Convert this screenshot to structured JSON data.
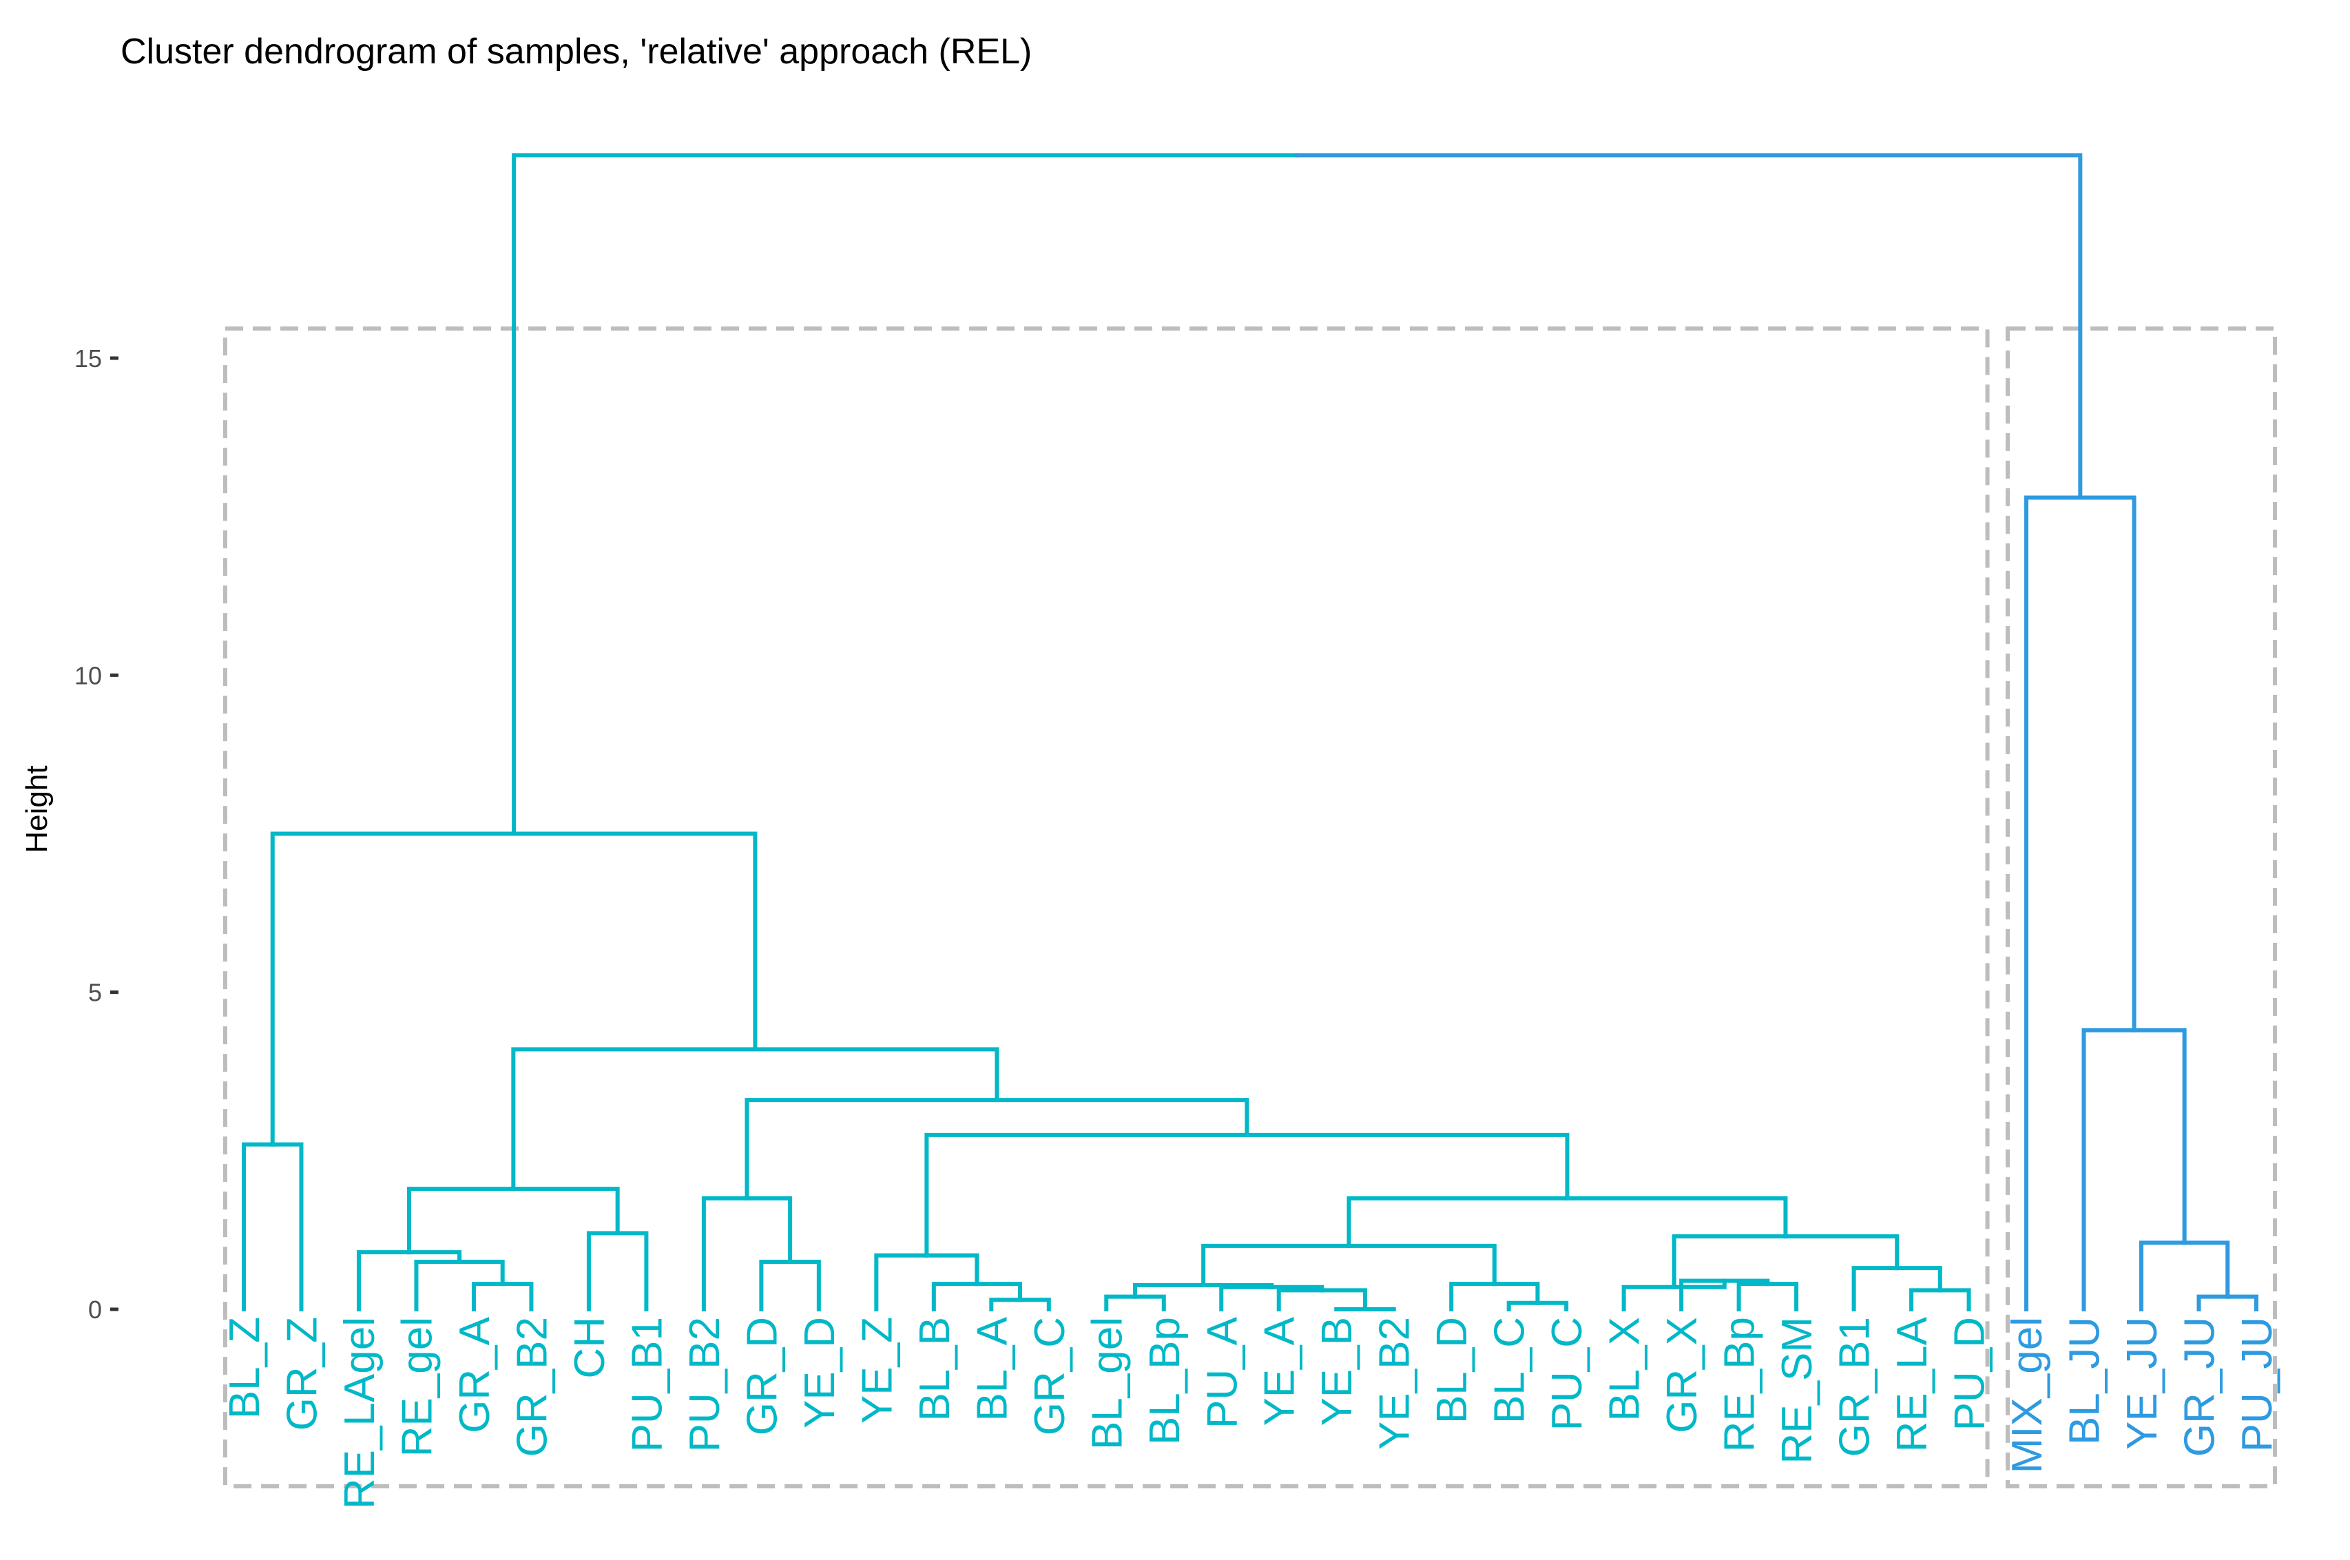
{
  "chart_data": {
    "type": "dendrogram",
    "title": "Cluster dendrogram of samples, 'relative' approach (REL)",
    "xlabel": "",
    "ylabel": "Height",
    "ylim": [
      0,
      18
    ],
    "y_ticks": [
      0,
      5,
      10,
      15
    ],
    "colors": {
      "cluster1": "#00b8c7",
      "cluster2": "#2e9ae0",
      "root_right": "#2e9ae0",
      "box": "#bdbdbd"
    },
    "leaves": [
      {
        "label": "BL_Z",
        "cluster": 1
      },
      {
        "label": "GR_Z",
        "cluster": 1
      },
      {
        "label": "RE_LAgel",
        "cluster": 1
      },
      {
        "label": "RE_gel",
        "cluster": 1
      },
      {
        "label": "GR_A",
        "cluster": 1
      },
      {
        "label": "GR_B2",
        "cluster": 1
      },
      {
        "label": "CH",
        "cluster": 1
      },
      {
        "label": "PU_B1",
        "cluster": 1
      },
      {
        "label": "PU_B2",
        "cluster": 1
      },
      {
        "label": "GR_D",
        "cluster": 1
      },
      {
        "label": "YE_D",
        "cluster": 1
      },
      {
        "label": "YE_Z",
        "cluster": 1
      },
      {
        "label": "BL_B",
        "cluster": 1
      },
      {
        "label": "BL_A",
        "cluster": 1
      },
      {
        "label": "GR_C",
        "cluster": 1
      },
      {
        "label": "BL_gel",
        "cluster": 1
      },
      {
        "label": "BL_Bp",
        "cluster": 1
      },
      {
        "label": "PU_A",
        "cluster": 1
      },
      {
        "label": "YE_A",
        "cluster": 1
      },
      {
        "label": "YE_B",
        "cluster": 1
      },
      {
        "label": "YE_B2",
        "cluster": 1
      },
      {
        "label": "BL_D",
        "cluster": 1
      },
      {
        "label": "BL_C",
        "cluster": 1
      },
      {
        "label": "PU_C",
        "cluster": 1
      },
      {
        "label": "BL_X",
        "cluster": 1
      },
      {
        "label": "GR_X",
        "cluster": 1
      },
      {
        "label": "RE_Bp",
        "cluster": 1
      },
      {
        "label": "RE_SM",
        "cluster": 1
      },
      {
        "label": "GR_B1",
        "cluster": 1
      },
      {
        "label": "RE_LA",
        "cluster": 1
      },
      {
        "label": "PU_D",
        "cluster": 1
      },
      {
        "label": "MIX_gel",
        "cluster": 2
      },
      {
        "label": "BL_JU",
        "cluster": 2
      },
      {
        "label": "YE_JU",
        "cluster": 2
      },
      {
        "label": "GR_JU",
        "cluster": 2
      },
      {
        "label": "PU_JU",
        "cluster": 2
      }
    ],
    "merges": [
      {
        "left": "L0",
        "right": "L1",
        "height": 2.6
      },
      {
        "left": "L4",
        "right": "L5",
        "height": 0.4
      },
      {
        "left": "L3",
        "right": "M1",
        "height": 0.75
      },
      {
        "left": "L2",
        "right": "M2",
        "height": 0.9
      },
      {
        "left": "L6",
        "right": "L7",
        "height": 1.2
      },
      {
        "left": "M3",
        "right": "M4",
        "height": 1.9
      },
      {
        "left": "L9",
        "right": "L10",
        "height": 0.75
      },
      {
        "left": "L8",
        "right": "M6",
        "height": 1.75
      },
      {
        "left": "L13",
        "right": "L14",
        "height": 0.15
      },
      {
        "left": "L12",
        "right": "M8",
        "height": 0.4
      },
      {
        "left": "L11",
        "right": "M9",
        "height": 0.85
      },
      {
        "left": "L15",
        "right": "L16",
        "height": 0.2
      },
      {
        "left": "L19",
        "right": "L20",
        "height": 0.0
      },
      {
        "left": "L18",
        "right": "M12",
        "height": 0.3
      },
      {
        "left": "L17",
        "right": "M13",
        "height": 0.35
      },
      {
        "left": "M11",
        "right": "M14",
        "height": 0.38
      },
      {
        "left": "L22",
        "right": "L23",
        "height": 0.1
      },
      {
        "left": "L21",
        "right": "M16",
        "height": 0.4
      },
      {
        "left": "M15",
        "right": "M17",
        "height": 1.0
      },
      {
        "left": "L26",
        "right": "L27",
        "height": 0.4
      },
      {
        "left": "L25",
        "right": "M19",
        "height": 0.45
      },
      {
        "left": "L24",
        "right": "M20",
        "height": 0.35
      },
      {
        "left": "L29",
        "right": "L30",
        "height": 0.3
      },
      {
        "left": "L28",
        "right": "M22",
        "height": 0.65
      },
      {
        "left": "M21",
        "right": "M23",
        "height": 1.15
      },
      {
        "left": "M18",
        "right": "M24",
        "height": 1.75
      },
      {
        "left": "M10",
        "right": "M25",
        "height": 2.75
      },
      {
        "left": "M7",
        "right": "M26",
        "height": 3.3
      },
      {
        "left": "M5",
        "right": "M27",
        "height": 4.1
      },
      {
        "left": "M0",
        "right": "M28",
        "height": 7.5
      },
      {
        "left": "L34",
        "right": "L35",
        "height": 0.2
      },
      {
        "left": "L33",
        "right": "M30",
        "height": 1.05
      },
      {
        "left": "L32",
        "right": "M31",
        "height": 4.4
      },
      {
        "left": "L31",
        "right": "M32",
        "height": 12.8
      },
      {
        "left": "M29",
        "right": "M33",
        "height": 18.2
      }
    ],
    "clusters": [
      {
        "id": 1,
        "leaves_from": 0,
        "leaves_to": 30,
        "color": "#00b8c7"
      },
      {
        "id": 2,
        "leaves_from": 31,
        "leaves_to": 35,
        "color": "#2e9ae0"
      }
    ]
  }
}
